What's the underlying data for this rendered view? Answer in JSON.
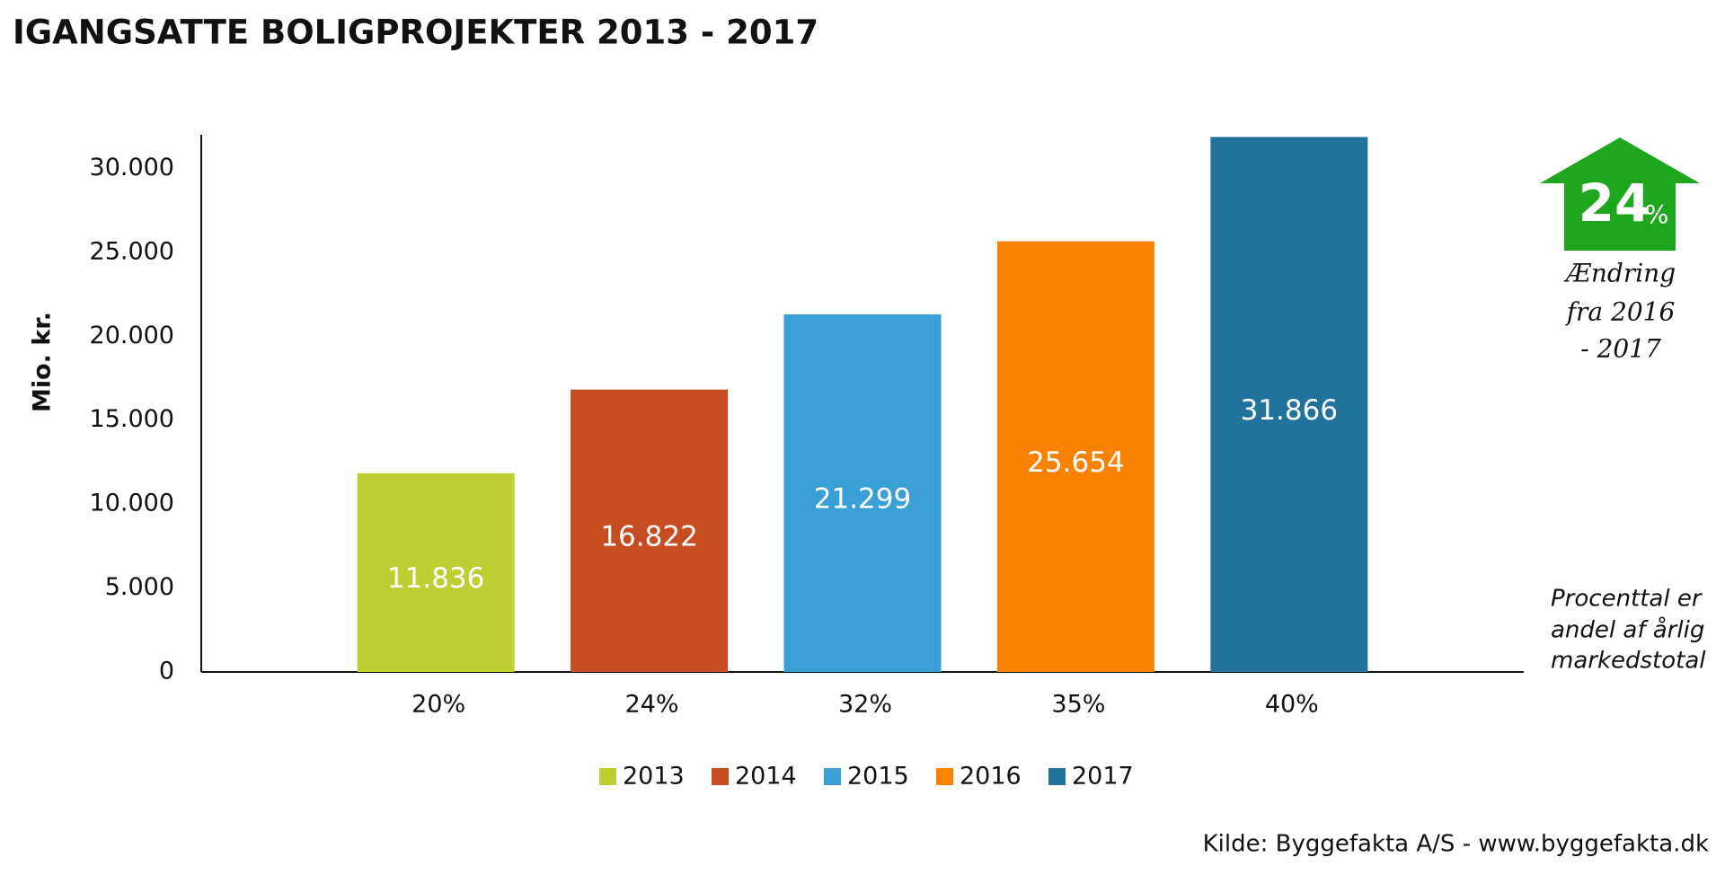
{
  "chart_data": {
    "type": "bar",
    "title": "IGANGSATTE BOLIGPROJEKTER 2013 - 2017",
    "y_label": "Mio. kr.",
    "categories": [
      "20%",
      "24%",
      "32%",
      "35%",
      "40%"
    ],
    "values": [
      11836,
      16822,
      21299,
      25654,
      31866
    ],
    "value_labels": [
      "11.836",
      "16.822",
      "21.299",
      "25.654",
      "31.866"
    ],
    "legend": [
      "2013",
      "2014",
      "2015",
      "2016",
      "2017"
    ],
    "colors": [
      "#bfcf33",
      "#c64c22",
      "#3a9fd5",
      "#fb8200",
      "#22729e"
    ],
    "ylim": [
      0,
      32000
    ],
    "yticks": [
      0,
      {
        "value": 5000,
        "label": "5.000"
      },
      {
        "value": 10000,
        "label": "10.000"
      },
      {
        "value": 15000,
        "label": "15.000"
      },
      {
        "value": 20000,
        "label": "20.000"
      },
      {
        "value": 25000,
        "label": "25.000"
      },
      {
        "value": 30000,
        "label": "30.000"
      }
    ],
    "change": {
      "value": 24,
      "unit": "%",
      "color": "#1ea61e",
      "text": [
        "Ændring",
        "fra 2016",
        "- 2017"
      ]
    },
    "note": [
      "Procenttal er",
      "andel af årlig",
      "markedstotal"
    ],
    "source": "Kilde: Byggefakta A/S - www.byggefakta.dk"
  }
}
